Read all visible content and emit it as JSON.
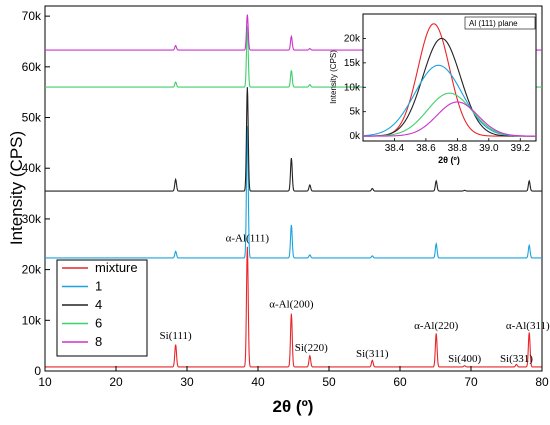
{
  "chart_data": [
    {
      "type": "line",
      "xlabel": "2θ (º)",
      "ylabel": "Intensity (CPS)",
      "xlim": [
        10,
        80
      ],
      "ylim": [
        0,
        72000
      ],
      "x_ticks": [
        10,
        20,
        30,
        40,
        50,
        60,
        70,
        80
      ],
      "y_ticks": [
        0,
        10000,
        20000,
        30000,
        40000,
        50000,
        60000,
        70000
      ],
      "y_tick_labels": [
        "0",
        "10k",
        "20k",
        "30k",
        "40k",
        "50k",
        "60k",
        "70k"
      ],
      "legend_position": "bottom-left",
      "series": [
        {
          "name": "mixture",
          "color": "#e8262a",
          "baseline": 800,
          "peaks": [
            [
              28.4,
              4400
            ],
            [
              38.5,
              23700
            ],
            [
              44.7,
              10500
            ],
            [
              47.3,
              2200
            ],
            [
              56.1,
              1300
            ],
            [
              65.1,
              6600
            ],
            [
              69.1,
              250
            ],
            [
              76.4,
              500
            ],
            [
              78.2,
              6800
            ]
          ]
        },
        {
          "name": "1",
          "color": "#1ba3dd",
          "baseline": 22300,
          "peaks": [
            [
              28.4,
              1300
            ],
            [
              38.5,
              26000
            ],
            [
              44.7,
              6500
            ],
            [
              47.3,
              600
            ],
            [
              56.1,
              400
            ],
            [
              65.1,
              2800
            ],
            [
              78.2,
              2500
            ]
          ]
        },
        {
          "name": "4",
          "color": "#222222",
          "baseline": 35500,
          "peaks": [
            [
              28.4,
              2300
            ],
            [
              38.5,
              20500
            ],
            [
              44.7,
              6500
            ],
            [
              47.3,
              1200
            ],
            [
              56.1,
              500
            ],
            [
              65.1,
              2000
            ],
            [
              69.1,
              150
            ],
            [
              78.2,
              2000
            ]
          ]
        },
        {
          "name": "6",
          "color": "#3fcf6b",
          "baseline": 56000,
          "peaks": [
            [
              28.4,
              1000
            ],
            [
              38.5,
              12000
            ],
            [
              44.7,
              3300
            ],
            [
              47.3,
              500
            ],
            [
              65.1,
              1200
            ],
            [
              78.2,
              1000
            ]
          ]
        },
        {
          "name": "8",
          "color": "#cc33cc",
          "baseline": 63300,
          "peaks": [
            [
              28.4,
              900
            ],
            [
              38.5,
              7000
            ],
            [
              44.7,
              2700
            ],
            [
              47.3,
              300
            ],
            [
              65.1,
              800
            ],
            [
              78.2,
              900
            ]
          ]
        }
      ],
      "annotations": [
        {
          "text": "α-Al(111)",
          "x": 38.5,
          "y": 25500
        },
        {
          "text": "α-Al(200)",
          "x": 44.7,
          "y": 12500
        },
        {
          "text": "α-Al(220)",
          "x": 65.1,
          "y": 8300
        },
        {
          "text": "α-Al(311)",
          "x": 78.0,
          "y": 8300
        },
        {
          "text": "Si(111)",
          "x": 28.4,
          "y": 6300
        },
        {
          "text": "Si(220)",
          "x": 47.5,
          "y": 3900
        },
        {
          "text": "Si(311)",
          "x": 56.1,
          "y": 2800
        },
        {
          "text": "Si(400)",
          "x": 69.1,
          "y": 1800
        },
        {
          "text": "Si(331)",
          "x": 76.4,
          "y": 1800
        }
      ]
    },
    {
      "type": "line",
      "inset": true,
      "title": "Al (111) plane",
      "xlabel": "2θ (º)",
      "ylabel": "Intensity (CPS)",
      "xlim": [
        38.2,
        39.3
      ],
      "ylim": [
        -1000,
        25000
      ],
      "x_ticks": [
        38.4,
        38.6,
        38.8,
        39.0,
        39.2
      ],
      "x_tick_labels": [
        "38.4",
        "38.6",
        "38.8",
        "39.0",
        "39.2"
      ],
      "y_ticks": [
        0,
        5000,
        10000,
        15000,
        20000
      ],
      "y_tick_labels": [
        "0k",
        "5k",
        "10k",
        "15k",
        "20k"
      ],
      "series": [
        {
          "name": "mixture",
          "color": "#e8262a",
          "center": 38.65,
          "height": 23000,
          "width": 0.1
        },
        {
          "name": "4",
          "color": "#222222",
          "center": 38.7,
          "height": 20000,
          "width": 0.12
        },
        {
          "name": "1",
          "color": "#1ba3dd",
          "center": 38.68,
          "height": 14500,
          "width": 0.15
        },
        {
          "name": "6",
          "color": "#3fcf6b",
          "center": 38.75,
          "height": 8800,
          "width": 0.14
        },
        {
          "name": "8",
          "color": "#cc33cc",
          "center": 38.8,
          "height": 7000,
          "width": 0.13
        }
      ]
    }
  ]
}
